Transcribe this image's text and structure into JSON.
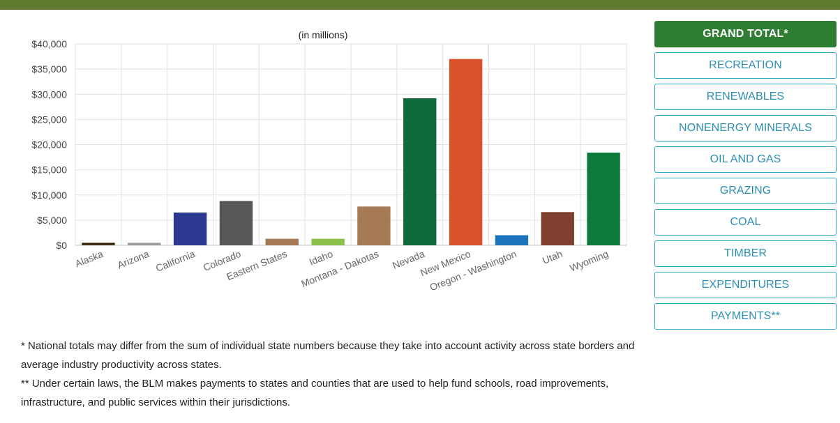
{
  "buttons": [
    {
      "label": "GRAND TOTAL*",
      "active": true,
      "name": "grand-total-button"
    },
    {
      "label": "RECREATION",
      "active": false,
      "name": "recreation-button"
    },
    {
      "label": "RENEWABLES",
      "active": false,
      "name": "renewables-button"
    },
    {
      "label": "NONENERGY MINERALS",
      "active": false,
      "name": "nonenergy-minerals-button"
    },
    {
      "label": "OIL AND GAS",
      "active": false,
      "name": "oil-and-gas-button"
    },
    {
      "label": "GRAZING",
      "active": false,
      "name": "grazing-button"
    },
    {
      "label": "COAL",
      "active": false,
      "name": "coal-button"
    },
    {
      "label": "TIMBER",
      "active": false,
      "name": "timber-button"
    },
    {
      "label": "EXPENDITURES",
      "active": false,
      "name": "expenditures-button"
    },
    {
      "label": "PAYMENTS**",
      "active": false,
      "name": "payments-button"
    }
  ],
  "notes": {
    "national_totals": "* National totals may differ from the sum of individual state numbers because they take into account activity across state borders and average industry productivity across states.",
    "payments": "** Under certain laws, the BLM makes payments to states and counties that are used to help fund schools, road improvements, infrastructure, and public services within their jurisdictions."
  },
  "colors": {
    "top_rule": "#5e7a2f",
    "active_button": "#2e7d32",
    "button_border": "#2ba3c3",
    "button_text": "#2b8fb3"
  },
  "chart_data": {
    "type": "bar",
    "title": "(in millions)",
    "xlabel": "",
    "ylabel": "",
    "ylim": [
      0,
      40000
    ],
    "yticks": [
      0,
      5000,
      10000,
      15000,
      20000,
      25000,
      30000,
      35000,
      40000
    ],
    "ytick_labels": [
      "$0",
      "$5,000",
      "$10,000",
      "$15,000",
      "$20,000",
      "$25,000",
      "$30,000",
      "$35,000",
      "$40,000"
    ],
    "grid": true,
    "categories": [
      "Alaska",
      "Arizona",
      "California",
      "Colorado",
      "Eastern States",
      "Idaho",
      "Montana - Dakotas",
      "Nevada",
      "New Mexico",
      "Oregon - Washington",
      "Utah",
      "Wyoming"
    ],
    "values": [
      500,
      500,
      6500,
      8800,
      1300,
      1300,
      7700,
      29200,
      37000,
      2000,
      6600,
      18400
    ],
    "colors": [
      "#3a2a10",
      "#9e9e9e",
      "#2b3990",
      "#555759",
      "#a57a54",
      "#8bc34a",
      "#a57a54",
      "#0e6b3b",
      "#d9522b",
      "#1c75bc",
      "#804030",
      "#0b7a3b"
    ]
  }
}
